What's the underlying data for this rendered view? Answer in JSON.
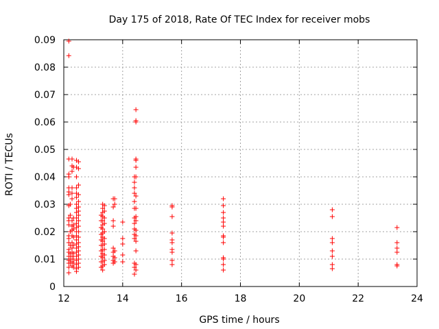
{
  "chart_data": {
    "type": "scatter",
    "title": "Day 175 of 2018, Rate Of TEC Index for receiver mobs",
    "xlabel": "GPS time / hours",
    "ylabel": "ROTI / TECUs",
    "xlim": [
      12,
      24
    ],
    "ylim": [
      0,
      0.09
    ],
    "xticks": [
      12,
      14,
      16,
      18,
      20,
      22,
      24
    ],
    "yticks": [
      0,
      0.01,
      0.02,
      0.03,
      0.04,
      0.05,
      0.06,
      0.07,
      0.08,
      0.09
    ],
    "xtick_labels": [
      "12",
      "14",
      "16",
      "18",
      "20",
      "22",
      "24"
    ],
    "ytick_labels": [
      "0",
      "0.01",
      "0.02",
      "0.03",
      "0.04",
      "0.05",
      "0.06",
      "0.07",
      "0.08",
      "0.09"
    ],
    "grid": true,
    "marker": "plus",
    "color": "#ff0000",
    "points": [
      [
        12.17,
        0.0895
      ],
      [
        12.17,
        0.0842
      ],
      [
        12.17,
        0.0465
      ],
      [
        12.17,
        0.041
      ],
      [
        12.17,
        0.04
      ],
      [
        12.17,
        0.036
      ],
      [
        12.17,
        0.0345
      ],
      [
        12.17,
        0.0335
      ],
      [
        12.17,
        0.0295
      ],
      [
        12.17,
        0.025
      ],
      [
        12.17,
        0.024
      ],
      [
        12.17,
        0.0225
      ],
      [
        12.17,
        0.0185
      ],
      [
        12.17,
        0.0175
      ],
      [
        12.17,
        0.016
      ],
      [
        12.17,
        0.0135
      ],
      [
        12.17,
        0.0125
      ],
      [
        12.17,
        0.011
      ],
      [
        12.17,
        0.0095
      ],
      [
        12.17,
        0.0085
      ],
      [
        12.17,
        0.007
      ],
      [
        12.17,
        0.005
      ],
      [
        12.22,
        0.03
      ],
      [
        12.22,
        0.026
      ],
      [
        12.22,
        0.02
      ],
      [
        12.22,
        0.015
      ],
      [
        12.22,
        0.012
      ],
      [
        12.22,
        0.01
      ],
      [
        12.22,
        0.0085
      ],
      [
        12.28,
        0.0465
      ],
      [
        12.28,
        0.044
      ],
      [
        12.28,
        0.042
      ],
      [
        12.28,
        0.036
      ],
      [
        12.28,
        0.034
      ],
      [
        12.28,
        0.032
      ],
      [
        12.28,
        0.024
      ],
      [
        12.28,
        0.022
      ],
      [
        12.28,
        0.0205
      ],
      [
        12.28,
        0.0185
      ],
      [
        12.28,
        0.016
      ],
      [
        12.28,
        0.014
      ],
      [
        12.28,
        0.0125
      ],
      [
        12.28,
        0.011
      ],
      [
        12.28,
        0.009
      ],
      [
        12.28,
        0.0075
      ],
      [
        12.33,
        0.0435
      ],
      [
        12.33,
        0.025
      ],
      [
        12.33,
        0.0225
      ],
      [
        12.33,
        0.021
      ],
      [
        12.33,
        0.018
      ],
      [
        12.33,
        0.015
      ],
      [
        12.33,
        0.012
      ],
      [
        12.33,
        0.01
      ],
      [
        12.33,
        0.0085
      ],
      [
        12.33,
        0.007
      ],
      [
        12.43,
        0.046
      ],
      [
        12.43,
        0.0435
      ],
      [
        12.43,
        0.04
      ],
      [
        12.43,
        0.036
      ],
      [
        12.43,
        0.034
      ],
      [
        12.43,
        0.0325
      ],
      [
        12.43,
        0.03
      ],
      [
        12.43,
        0.0285
      ],
      [
        12.43,
        0.027
      ],
      [
        12.43,
        0.025
      ],
      [
        12.43,
        0.023
      ],
      [
        12.43,
        0.0215
      ],
      [
        12.43,
        0.02
      ],
      [
        12.43,
        0.0185
      ],
      [
        12.43,
        0.017
      ],
      [
        12.43,
        0.0155
      ],
      [
        12.43,
        0.014
      ],
      [
        12.43,
        0.0125
      ],
      [
        12.43,
        0.011
      ],
      [
        12.43,
        0.0095
      ],
      [
        12.43,
        0.008
      ],
      [
        12.43,
        0.0065
      ],
      [
        12.43,
        0.0055
      ],
      [
        12.5,
        0.0455
      ],
      [
        12.5,
        0.043
      ],
      [
        12.5,
        0.037
      ],
      [
        12.5,
        0.0335
      ],
      [
        12.5,
        0.031
      ],
      [
        12.5,
        0.029
      ],
      [
        12.5,
        0.0275
      ],
      [
        12.5,
        0.026
      ],
      [
        12.5,
        0.024
      ],
      [
        12.5,
        0.022
      ],
      [
        12.5,
        0.02
      ],
      [
        12.5,
        0.018
      ],
      [
        12.5,
        0.016
      ],
      [
        12.5,
        0.0145
      ],
      [
        12.5,
        0.013
      ],
      [
        12.5,
        0.0115
      ],
      [
        12.5,
        0.01
      ],
      [
        12.5,
        0.0085
      ],
      [
        12.5,
        0.007
      ],
      [
        13.27,
        0.026
      ],
      [
        13.27,
        0.024
      ],
      [
        13.27,
        0.0215
      ],
      [
        13.27,
        0.019
      ],
      [
        13.27,
        0.017
      ],
      [
        13.27,
        0.015
      ],
      [
        13.27,
        0.013
      ],
      [
        13.27,
        0.011
      ],
      [
        13.27,
        0.009
      ],
      [
        13.27,
        0.007
      ],
      [
        13.32,
        0.03
      ],
      [
        13.32,
        0.0285
      ],
      [
        13.32,
        0.027
      ],
      [
        13.32,
        0.0255
      ],
      [
        13.32,
        0.024
      ],
      [
        13.32,
        0.0225
      ],
      [
        13.32,
        0.021
      ],
      [
        13.32,
        0.0195
      ],
      [
        13.32,
        0.018
      ],
      [
        13.32,
        0.0165
      ],
      [
        13.32,
        0.015
      ],
      [
        13.32,
        0.0135
      ],
      [
        13.32,
        0.012
      ],
      [
        13.32,
        0.0105
      ],
      [
        13.32,
        0.009
      ],
      [
        13.32,
        0.0075
      ],
      [
        13.32,
        0.006
      ],
      [
        13.38,
        0.0295
      ],
      [
        13.38,
        0.0275
      ],
      [
        13.38,
        0.025
      ],
      [
        13.38,
        0.023
      ],
      [
        13.38,
        0.02
      ],
      [
        13.38,
        0.0175
      ],
      [
        13.38,
        0.0155
      ],
      [
        13.38,
        0.0135
      ],
      [
        13.38,
        0.0115
      ],
      [
        13.38,
        0.0095
      ],
      [
        13.38,
        0.008
      ],
      [
        13.68,
        0.032
      ],
      [
        13.68,
        0.029
      ],
      [
        13.68,
        0.024
      ],
      [
        13.68,
        0.022
      ],
      [
        13.68,
        0.014
      ],
      [
        13.68,
        0.0125
      ],
      [
        13.68,
        0.011
      ],
      [
        13.68,
        0.0095
      ],
      [
        13.68,
        0.0085
      ],
      [
        13.73,
        0.032
      ],
      [
        13.73,
        0.03
      ],
      [
        13.73,
        0.013
      ],
      [
        13.73,
        0.0105
      ],
      [
        13.73,
        0.009
      ],
      [
        14.0,
        0.0235
      ],
      [
        14.0,
        0.0175
      ],
      [
        14.0,
        0.0155
      ],
      [
        14.0,
        0.0115
      ],
      [
        14.0,
        0.009
      ],
      [
        14.4,
        0.04
      ],
      [
        14.4,
        0.038
      ],
      [
        14.4,
        0.036
      ],
      [
        14.4,
        0.034
      ],
      [
        14.4,
        0.031
      ],
      [
        14.4,
        0.0285
      ],
      [
        14.4,
        0.025
      ],
      [
        14.4,
        0.023
      ],
      [
        14.4,
        0.021
      ],
      [
        14.4,
        0.019
      ],
      [
        14.4,
        0.0175
      ],
      [
        14.4,
        0.0085
      ],
      [
        14.4,
        0.007
      ],
      [
        14.4,
        0.0045
      ],
      [
        14.45,
        0.0645
      ],
      [
        14.45,
        0.0605
      ],
      [
        14.45,
        0.06
      ],
      [
        14.45,
        0.0465
      ],
      [
        14.45,
        0.046
      ],
      [
        14.45,
        0.0435
      ],
      [
        14.45,
        0.04
      ],
      [
        14.45,
        0.033
      ],
      [
        14.45,
        0.0285
      ],
      [
        14.45,
        0.0255
      ],
      [
        14.45,
        0.024
      ],
      [
        14.45,
        0.0205
      ],
      [
        14.45,
        0.0185
      ],
      [
        14.45,
        0.0165
      ],
      [
        14.45,
        0.013
      ],
      [
        14.45,
        0.008
      ],
      [
        14.45,
        0.006
      ],
      [
        15.68,
        0.0295
      ],
      [
        15.68,
        0.029
      ],
      [
        15.68,
        0.0255
      ],
      [
        15.68,
        0.0195
      ],
      [
        15.68,
        0.017
      ],
      [
        15.68,
        0.016
      ],
      [
        15.68,
        0.0135
      ],
      [
        15.68,
        0.0125
      ],
      [
        15.68,
        0.0095
      ],
      [
        15.68,
        0.008
      ],
      [
        17.42,
        0.032
      ],
      [
        17.42,
        0.0295
      ],
      [
        17.42,
        0.027
      ],
      [
        17.42,
        0.025
      ],
      [
        17.42,
        0.0235
      ],
      [
        17.42,
        0.022
      ],
      [
        17.42,
        0.0185
      ],
      [
        17.42,
        0.018
      ],
      [
        17.42,
        0.016
      ],
      [
        17.42,
        0.0105
      ],
      [
        17.42,
        0.01
      ],
      [
        17.42,
        0.008
      ],
      [
        17.42,
        0.006
      ],
      [
        21.12,
        0.028
      ],
      [
        21.12,
        0.0255
      ],
      [
        21.12,
        0.0175
      ],
      [
        21.12,
        0.016
      ],
      [
        21.12,
        0.013
      ],
      [
        21.12,
        0.011
      ],
      [
        21.12,
        0.008
      ],
      [
        21.12,
        0.0065
      ],
      [
        23.32,
        0.0215
      ],
      [
        23.32,
        0.016
      ],
      [
        23.32,
        0.014
      ],
      [
        23.32,
        0.0125
      ],
      [
        23.32,
        0.008
      ],
      [
        23.32,
        0.0075
      ]
    ]
  }
}
